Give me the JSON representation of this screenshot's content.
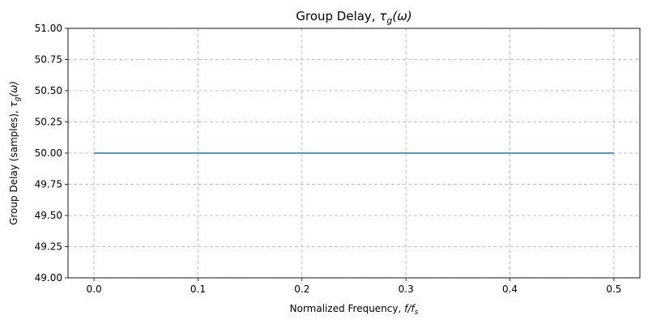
{
  "chart_data": {
    "type": "line",
    "title": "Group Delay, τ_g(ω)",
    "title_parts": {
      "main": "Group Delay, ",
      "sym": "τ",
      "sub": "g",
      "arg": "(ω)"
    },
    "xlabel": "Normalized Frequency, f/f_s",
    "xlabel_parts": {
      "main": "Normalized Frequency, ",
      "f": "f/f",
      "sub": "s"
    },
    "ylabel": "Group Delay (samples), τ_g(ω)",
    "ylabel_parts": {
      "main": "Group Delay (samples), ",
      "sym": "τ",
      "sub": "g",
      "arg": "(ω)"
    },
    "xlim": [
      -0.025,
      0.525
    ],
    "ylim": [
      49.0,
      51.0
    ],
    "xticks": [
      0.0,
      0.1,
      0.2,
      0.3,
      0.4,
      0.5
    ],
    "xtick_labels": [
      "0.0",
      "0.1",
      "0.2",
      "0.3",
      "0.4",
      "0.5"
    ],
    "yticks": [
      49.0,
      49.25,
      49.5,
      49.75,
      50.0,
      50.25,
      50.5,
      50.75,
      51.0
    ],
    "ytick_labels": [
      "49.00",
      "49.25",
      "49.50",
      "49.75",
      "50.00",
      "50.25",
      "50.50",
      "50.75",
      "51.00"
    ],
    "grid": true,
    "series": [
      {
        "color": "#1f77b4",
        "x": [
          0.0,
          0.05,
          0.1,
          0.15,
          0.2,
          0.25,
          0.3,
          0.35,
          0.4,
          0.45,
          0.5
        ],
        "y": [
          50.0,
          50.0,
          50.0,
          50.0,
          50.0,
          50.0,
          50.0,
          50.0,
          50.0,
          50.0,
          50.0
        ]
      }
    ]
  }
}
